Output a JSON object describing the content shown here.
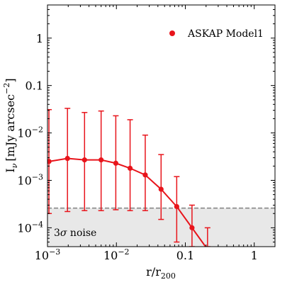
{
  "chart_data": {
    "type": "line",
    "xlabel_main": "r/r",
    "xlabel_sub": "200",
    "ylabel_main": "I",
    "ylabel_nu": "ν",
    "ylabel_unit": "[mJy arcsec",
    "ylabel_exp": "−2",
    "ylabel_close": "]",
    "xscale": "log",
    "yscale": "log",
    "xlim": [
      0.001,
      2
    ],
    "ylim": [
      4e-05,
      5
    ],
    "xticks": [
      {
        "value": 0.001,
        "base": "10",
        "exp": "−3"
      },
      {
        "value": 0.01,
        "base": "10",
        "exp": "−2"
      },
      {
        "value": 0.1,
        "label": "0.1"
      },
      {
        "value": 1,
        "label": "1"
      }
    ],
    "yticks": [
      {
        "value": 1,
        "label": "1"
      },
      {
        "value": 0.1,
        "label": "0.1"
      },
      {
        "value": 0.01,
        "base": "10",
        "exp": "−2"
      },
      {
        "value": 0.001,
        "base": "10",
        "exp": "−3"
      },
      {
        "value": 0.0001,
        "base": "10",
        "exp": "−4"
      }
    ],
    "legend": {
      "label": "ASKAP Model1",
      "placement": "top-right"
    },
    "noise": {
      "level": 0.00026,
      "label_main": "3",
      "label_sigma": "σ",
      "label_rest": " noise"
    },
    "colors": {
      "series": "#e8141b",
      "noise_fill": "#e8e8e8",
      "noise_line": "#808080"
    },
    "series": [
      {
        "x": [
          0.00105,
          0.00195,
          0.00345,
          0.006,
          0.0098,
          0.0158,
          0.0262,
          0.0445,
          0.075,
          0.125,
          0.21
        ],
        "y": [
          0.0025,
          0.0029,
          0.0027,
          0.0027,
          0.0023,
          0.0018,
          0.0013,
          0.00065,
          0.00028,
          0.0001,
          3.5e-05
        ],
        "yerr_lo": [
          0.0002,
          0.00022,
          0.00023,
          0.00023,
          0.00024,
          0.00023,
          0.00023,
          0.00015,
          5e-05,
          4e-05,
          4e-05
        ],
        "yerr_hi": [
          0.031,
          0.033,
          0.027,
          0.029,
          0.023,
          0.019,
          0.009,
          0.0035,
          0.0012,
          0.0003,
          0.0001
        ]
      }
    ]
  }
}
